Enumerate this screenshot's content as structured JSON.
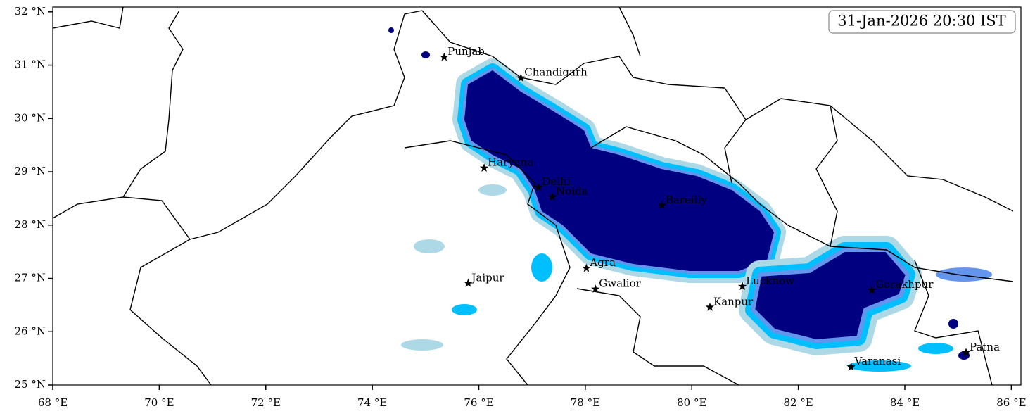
{
  "chart_data": {
    "type": "map",
    "title": "31-Jan-2026 20:30 IST",
    "xlim": [
      68,
      86.18
    ],
    "ylim": [
      25,
      32.09
    ],
    "xticks": [
      {
        "value": 68,
        "label": "68 °E"
      },
      {
        "value": 70,
        "label": "70 °E"
      },
      {
        "value": 72,
        "label": "72 °E"
      },
      {
        "value": 74,
        "label": "74 °E"
      },
      {
        "value": 76,
        "label": "76 °E"
      },
      {
        "value": 78,
        "label": "78 °E"
      },
      {
        "value": 80,
        "label": "80 °E"
      },
      {
        "value": 82,
        "label": "82 °E"
      },
      {
        "value": 84,
        "label": "84 °E"
      },
      {
        "value": 86,
        "label": "86 °E"
      }
    ],
    "yticks": [
      {
        "value": 25,
        "label": "25 °N"
      },
      {
        "value": 26,
        "label": "26 °N"
      },
      {
        "value": 27,
        "label": "27 °N"
      },
      {
        "value": 28,
        "label": "28 °N"
      },
      {
        "value": 29,
        "label": "29 °N"
      },
      {
        "value": 30,
        "label": "30 °N"
      },
      {
        "value": 31,
        "label": "31 °N"
      },
      {
        "value": 32,
        "label": "32 °N"
      }
    ],
    "cities": [
      {
        "name": "Punjab",
        "lon": 75.35,
        "lat": 31.15
      },
      {
        "name": "Chandigarh",
        "lon": 76.79,
        "lat": 30.76
      },
      {
        "name": "Haryana",
        "lon": 76.1,
        "lat": 29.07
      },
      {
        "name": "Delhi",
        "lon": 77.12,
        "lat": 28.71
      },
      {
        "name": "Noida",
        "lon": 77.38,
        "lat": 28.53
      },
      {
        "name": "Bareilly",
        "lon": 79.44,
        "lat": 28.37
      },
      {
        "name": "Agra",
        "lon": 78.02,
        "lat": 27.19
      },
      {
        "name": "Jaipur",
        "lon": 75.8,
        "lat": 26.91
      },
      {
        "name": "Gwalior",
        "lon": 78.19,
        "lat": 26.8
      },
      {
        "name": "Lucknow",
        "lon": 80.95,
        "lat": 26.85
      },
      {
        "name": "Gorakhpur",
        "lon": 83.38,
        "lat": 26.78
      },
      {
        "name": "Kanpur",
        "lon": 80.34,
        "lat": 26.46
      },
      {
        "name": "Varanasi",
        "lon": 82.99,
        "lat": 25.34
      },
      {
        "name": "Patna",
        "lon": 85.15,
        "lat": 25.61
      }
    ]
  }
}
